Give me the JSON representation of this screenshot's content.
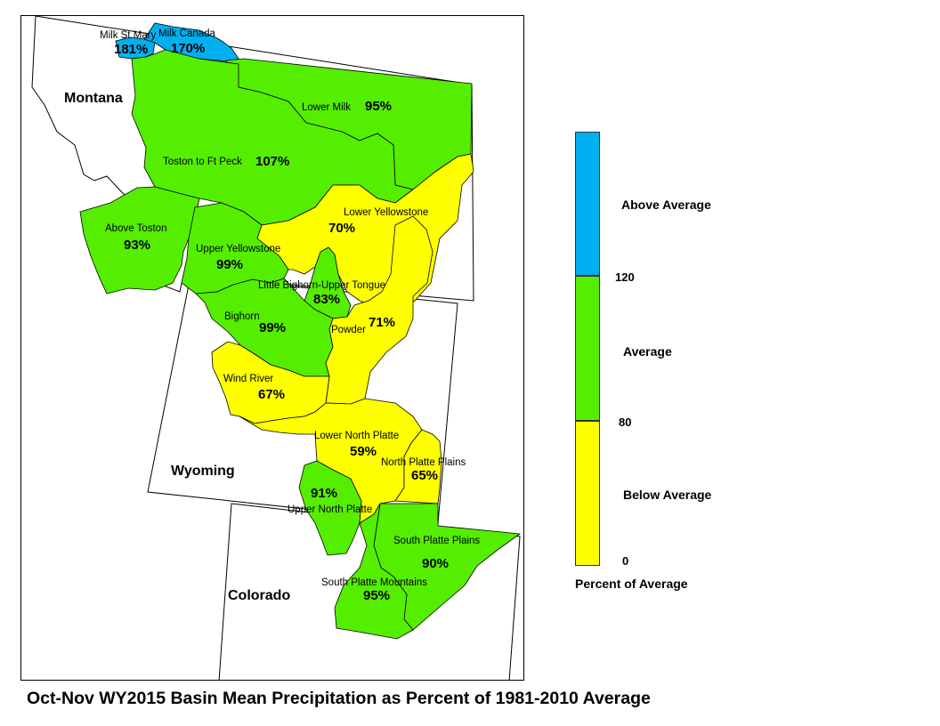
{
  "colors": {
    "above": "#00B0F0",
    "average": "#55EE00",
    "below": "#FFFF00",
    "outline": "#000000"
  },
  "states": {
    "montana": "Montana",
    "wyoming": "Wyoming",
    "colorado": "Colorado"
  },
  "basins": [
    {
      "id": "milk-st-mary",
      "name": "Milk St Mary",
      "percent": "181%",
      "category": "above"
    },
    {
      "id": "milk-canada",
      "name": "Milk Canada",
      "percent": "170%",
      "category": "above"
    },
    {
      "id": "lower-milk",
      "name": "Lower Milk",
      "percent": "95%",
      "category": "average"
    },
    {
      "id": "toston-ft-peck",
      "name": "Toston to Ft Peck",
      "percent": "107%",
      "category": "average"
    },
    {
      "id": "above-toston",
      "name": "Above Toston",
      "percent": "93%",
      "category": "average"
    },
    {
      "id": "upper-yellowstone",
      "name": "Upper Yellowstone",
      "percent": "99%",
      "category": "average"
    },
    {
      "id": "lower-yellowstone",
      "name": "Lower Yellowstone",
      "percent": "70%",
      "category": "below"
    },
    {
      "id": "little-bighorn",
      "name": "Little Bighorn-Upper Tongue",
      "percent": "83%",
      "category": "average"
    },
    {
      "id": "bighorn",
      "name": "Bighorn",
      "percent": "99%",
      "category": "average"
    },
    {
      "id": "powder",
      "name": "Powder",
      "percent": "71%",
      "category": "below"
    },
    {
      "id": "wind-river",
      "name": "Wind River",
      "percent": "67%",
      "category": "below"
    },
    {
      "id": "lower-north-platte",
      "name": "Lower North Platte",
      "percent": "59%",
      "category": "below"
    },
    {
      "id": "north-platte-plains",
      "name": "North Platte Plains",
      "percent": "65%",
      "category": "below"
    },
    {
      "id": "upper-north-platte",
      "name": "Upper North Platte",
      "percent": "91%",
      "category": "average"
    },
    {
      "id": "south-platte-plains",
      "name": "South Platte Plains",
      "percent": "90%",
      "category": "average"
    },
    {
      "id": "south-platte-mountains",
      "name": "South Platte Mountains",
      "percent": "95%",
      "category": "average"
    }
  ],
  "legend": {
    "categories": [
      {
        "key": "above",
        "label": "Above Average"
      },
      {
        "key": "average",
        "label": "Average"
      },
      {
        "key": "below",
        "label": "Below Average"
      }
    ],
    "ticks": [
      "120",
      "80",
      "0"
    ],
    "title": "Percent of Average"
  },
  "caption": "Oct-Nov WY2015 Basin Mean Precipitation as Percent of 1981-2010 Average"
}
